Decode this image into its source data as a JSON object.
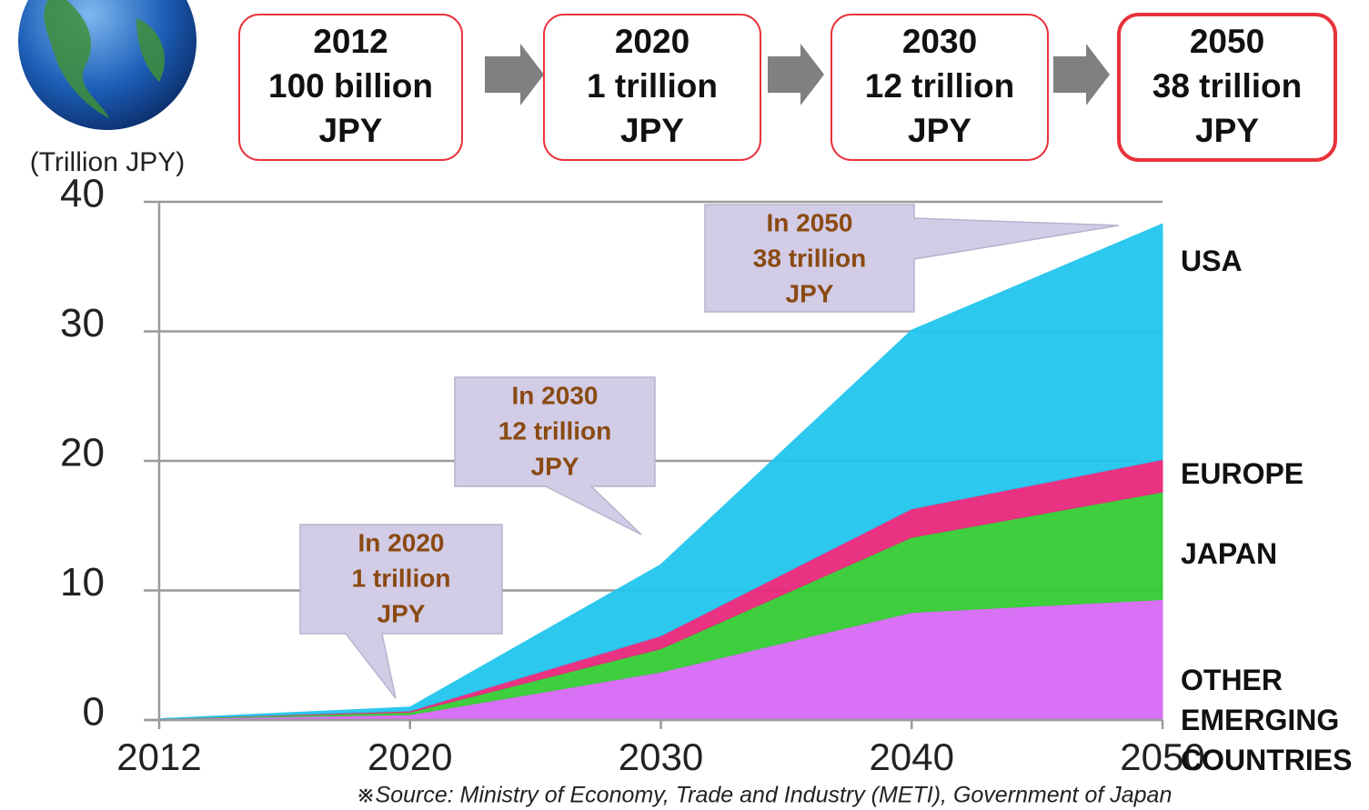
{
  "chart_data": {
    "type": "stacked-area",
    "unit_label": "(Trillion JPY)",
    "categories": [
      "2012",
      "2020",
      "2030",
      "2040",
      "2050"
    ],
    "series": [
      {
        "name": "USA",
        "color": "#d86af6",
        "values": [
          0.1,
          0.4,
          3.7,
          8.3,
          9.3
        ]
      },
      {
        "name": "EUROPE",
        "color": "#34cc34",
        "values": [
          0,
          0.2,
          1.8,
          5.8,
          8.3
        ]
      },
      {
        "name": "JAPAN",
        "color": "#e8287c",
        "values": [
          0,
          0.1,
          1.0,
          2.2,
          2.5
        ]
      },
      {
        "name": "OTHER EMERGING COUNTRIES",
        "color": "#22c6ee",
        "values": [
          0,
          0.3,
          5.5,
          13.8,
          18.2
        ]
      }
    ],
    "ylim": [
      0,
      40
    ],
    "yticks": [
      0,
      10,
      20,
      30,
      40
    ],
    "grid": true,
    "top_boxes": [
      {
        "year": "2012",
        "amount": "100 billion",
        "unit": "JPY"
      },
      {
        "year": "2020",
        "amount": "1 trillion",
        "unit": "JPY"
      },
      {
        "year": "2030",
        "amount": "12 trillion",
        "unit": "JPY"
      },
      {
        "year": "2050",
        "amount": "38 trillion",
        "unit": "JPY"
      }
    ],
    "annotations": [
      {
        "lines": [
          "In 2020",
          "1 trillion",
          "JPY"
        ]
      },
      {
        "lines": [
          "In 2030",
          "12 trillion",
          "JPY"
        ]
      },
      {
        "lines": [
          "In 2050",
          "38 trillion",
          "JPY"
        ]
      }
    ],
    "source": "※Source: Ministry of Economy, Trade and Industry (METI), Government of Japan"
  }
}
